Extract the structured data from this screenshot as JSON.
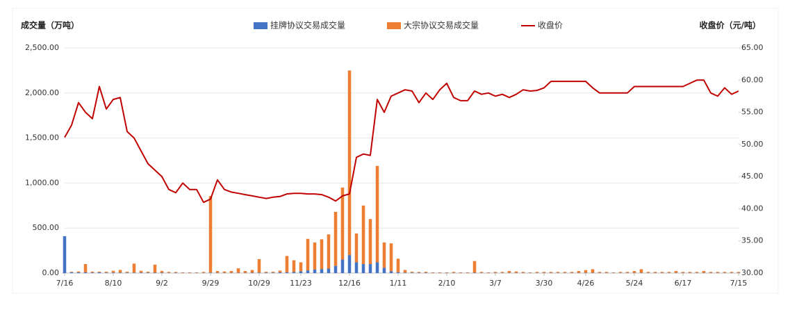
{
  "chart_data": {
    "type": "bar",
    "y_axis_title": "成交量（万吨）",
    "y2_axis_title": "收盘价（元/吨）",
    "categories": [
      "7/16",
      null,
      null,
      null,
      null,
      null,
      null,
      "8/10",
      null,
      null,
      null,
      null,
      null,
      null,
      "9/2",
      null,
      null,
      null,
      null,
      null,
      null,
      "9/29",
      null,
      null,
      null,
      null,
      null,
      null,
      "10/29",
      null,
      null,
      null,
      null,
      null,
      "11/23",
      null,
      null,
      null,
      null,
      null,
      null,
      "12/16",
      null,
      null,
      null,
      null,
      null,
      null,
      "1/11",
      null,
      null,
      null,
      null,
      null,
      null,
      "2/10",
      null,
      null,
      null,
      null,
      null,
      null,
      "3/7",
      null,
      null,
      null,
      null,
      null,
      null,
      "3/30",
      null,
      null,
      null,
      null,
      null,
      "4/26",
      null,
      null,
      null,
      null,
      null,
      null,
      "5/24",
      null,
      null,
      null,
      null,
      null,
      null,
      "6/17",
      null,
      null,
      null,
      null,
      null,
      null,
      null,
      "7/15"
    ],
    "series": [
      {
        "name": "挂牌协议交易成交量",
        "type": "bar",
        "color": "#4472c4",
        "values": [
          410,
          10,
          8,
          10,
          6,
          8,
          5,
          6,
          5,
          5,
          5,
          6,
          5,
          4,
          4,
          3,
          4,
          3,
          3,
          3,
          3,
          5,
          3,
          3,
          3,
          3,
          3,
          4,
          5,
          4,
          5,
          8,
          10,
          12,
          20,
          30,
          40,
          45,
          50,
          80,
          150,
          200,
          120,
          100,
          100,
          120,
          60,
          20,
          10,
          5,
          5,
          4,
          4,
          3,
          3,
          3,
          3,
          3,
          3,
          4,
          3,
          3,
          3,
          3,
          3,
          3,
          3,
          3,
          3,
          3,
          3,
          3,
          3,
          3,
          3,
          3,
          3,
          3,
          3,
          3,
          3,
          3,
          3,
          3,
          3,
          3,
          3,
          3,
          3,
          3,
          3,
          3,
          3,
          3,
          3,
          3,
          3,
          3
        ]
      },
      {
        "name": "大宗协议交易成交量",
        "type": "bar",
        "color": "#ed7d31",
        "values": [
          0,
          5,
          10,
          90,
          10,
          8,
          10,
          20,
          30,
          10,
          100,
          20,
          10,
          90,
          20,
          10,
          8,
          5,
          5,
          5,
          10,
          850,
          20,
          15,
          20,
          50,
          20,
          30,
          150,
          10,
          10,
          20,
          180,
          130,
          100,
          350,
          300,
          330,
          380,
          600,
          800,
          2050,
          320,
          650,
          500,
          1070,
          280,
          310,
          150,
          30,
          10,
          8,
          10,
          5,
          5,
          5,
          10,
          5,
          5,
          130,
          10,
          5,
          10,
          10,
          20,
          15,
          10,
          5,
          10,
          10,
          10,
          10,
          10,
          10,
          20,
          30,
          40,
          10,
          10,
          5,
          10,
          10,
          20,
          40,
          10,
          10,
          10,
          10,
          20,
          10,
          10,
          10,
          20,
          10,
          10,
          10,
          10,
          10
        ]
      },
      {
        "name": "收盘价",
        "type": "line",
        "axis": "y2",
        "color": "#c00000",
        "values": [
          51.1,
          53,
          56.5,
          55,
          54,
          59,
          55.5,
          57,
          57.3,
          52,
          51,
          49,
          47,
          46,
          45,
          43,
          42.5,
          44,
          43,
          43,
          41,
          41.5,
          44.5,
          43,
          42.6,
          42.4,
          42.2,
          42,
          41.8,
          41.6,
          41.8,
          41.9,
          42.3,
          42.4,
          42.4,
          42.3,
          42.3,
          42.2,
          41.8,
          41.2,
          42,
          42.3,
          48,
          48.5,
          48.3,
          57,
          55,
          57.5,
          58,
          58.5,
          58.3,
          56.5,
          58,
          57,
          58.5,
          59.5,
          57.3,
          56.8,
          56.8,
          58.3,
          57.8,
          58,
          57.5,
          57.8,
          57.3,
          57.8,
          58.5,
          58.3,
          58.4,
          58.8,
          59.8,
          59.8,
          59.8,
          59.8,
          59.8,
          59.8,
          58.8,
          58,
          58,
          58,
          58,
          58,
          59,
          59,
          59,
          59,
          59,
          59,
          59,
          59,
          59.5,
          60,
          60,
          58,
          57.5,
          58.8,
          57.8,
          58.3
        ]
      }
    ],
    "ylim": [
      0,
      2500
    ],
    "yticks": [
      {
        "value": 0,
        "label": "0.00"
      },
      {
        "value": 500,
        "label": "500.00"
      },
      {
        "value": 1000,
        "label": "1,000.00"
      },
      {
        "value": 1500,
        "label": "1,500.00"
      },
      {
        "value": 2000,
        "label": "2,000.00"
      },
      {
        "value": 2500,
        "label": "2,500.00"
      }
    ],
    "y2lim": [
      30,
      65
    ],
    "y2ticks": [
      {
        "value": 30,
        "label": "30.00"
      },
      {
        "value": 35,
        "label": "35.00"
      },
      {
        "value": 40,
        "label": "40.00"
      },
      {
        "value": 45,
        "label": "45.00"
      },
      {
        "value": 50,
        "label": "50.00"
      },
      {
        "value": 55,
        "label": "55.00"
      },
      {
        "value": 60,
        "label": "60.00"
      },
      {
        "value": 65,
        "label": "65.00"
      }
    ],
    "grid": true,
    "legend": "top"
  }
}
